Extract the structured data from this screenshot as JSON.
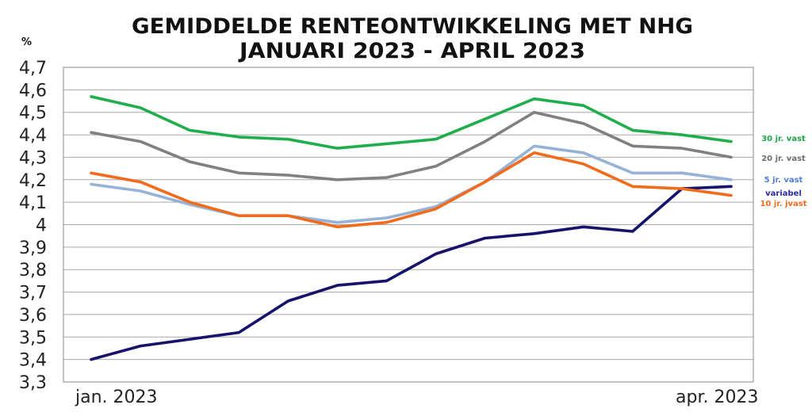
{
  "chart_data": {
    "type": "line",
    "title": "GEMIDDELDE RENTEONTWIKKELING MET NHG",
    "subtitle": "JANUARI 2023 - APRIL 2023",
    "ylabel": "%",
    "xlabel": "",
    "ylim": [
      3.3,
      4.7
    ],
    "yticks": [
      {
        "value": 4.7,
        "label": "4,7"
      },
      {
        "value": 4.6,
        "label": "4,6"
      },
      {
        "value": 4.5,
        "label": "4,5"
      },
      {
        "value": 4.4,
        "label": "4,4"
      },
      {
        "value": 4.3,
        "label": "4,3"
      },
      {
        "value": 4.2,
        "label": "4,2"
      },
      {
        "value": 4.1,
        "label": "4,1"
      },
      {
        "value": 4.0,
        "label": "4"
      },
      {
        "value": 3.9,
        "label": "3,9"
      },
      {
        "value": 3.8,
        "label": "3,8"
      },
      {
        "value": 3.7,
        "label": "3,7"
      },
      {
        "value": 3.6,
        "label": "3,6"
      },
      {
        "value": 3.5,
        "label": "3,5"
      },
      {
        "value": 3.4,
        "label": "3,4"
      },
      {
        "value": 3.3,
        "label": "3,3"
      }
    ],
    "xticks": [
      "jan. 2023",
      "apr. 2023"
    ],
    "grid": true,
    "legend_placement": "right",
    "series": [
      {
        "name": "30 jr. vast",
        "color": "#1fae4b",
        "label_color": "#1fa447",
        "values": [
          4.57,
          4.52,
          4.42,
          4.39,
          4.38,
          4.34,
          4.36,
          4.38,
          4.47,
          4.56,
          4.53,
          4.42,
          4.4,
          4.37
        ]
      },
      {
        "name": "20 jr. vast",
        "color": "#808080",
        "label_color": "#6e6e6e",
        "values": [
          4.41,
          4.37,
          4.28,
          4.23,
          4.22,
          4.2,
          4.21,
          4.26,
          4.37,
          4.5,
          4.45,
          4.35,
          4.34,
          4.3
        ]
      },
      {
        "name": "5 jr. vast",
        "color": "#95b3d7",
        "label_color": "#4f7fd1",
        "values": [
          4.18,
          4.15,
          4.09,
          4.04,
          4.04,
          4.01,
          4.03,
          4.08,
          4.19,
          4.35,
          4.32,
          4.23,
          4.23,
          4.2
        ]
      },
      {
        "name": "variabel",
        "color": "#15136b",
        "label_color": "#2b2ba8",
        "values": [
          3.4,
          3.46,
          3.49,
          3.52,
          3.66,
          3.73,
          3.75,
          3.87,
          3.94,
          3.96,
          3.99,
          3.97,
          4.16,
          4.17
        ]
      },
      {
        "name": "10 jr. jvast",
        "color": "#f26b1d",
        "label_color": "#f26b1d",
        "values": [
          4.23,
          4.19,
          4.1,
          4.04,
          4.04,
          3.99,
          4.01,
          4.07,
          4.19,
          4.32,
          4.27,
          4.17,
          4.16,
          4.13
        ]
      }
    ]
  }
}
